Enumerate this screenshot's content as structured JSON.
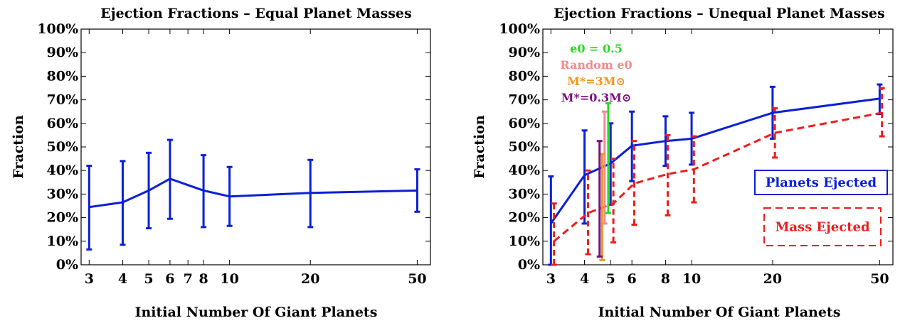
{
  "chart_data": [
    {
      "type": "line",
      "title": "Ejection Fractions – Equal Planet Masses",
      "xlabel": "Initial Number Of Giant Planets",
      "ylabel": "Fraction",
      "xscale": "log",
      "xlim": [
        2.8,
        56
      ],
      "ylim": [
        0,
        100
      ],
      "yticks": [
        "0%",
        "10%",
        "20%",
        "30%",
        "40%",
        "50%",
        "60%",
        "70%",
        "80%",
        "90%",
        "100%"
      ],
      "xticks": [
        "3",
        "4",
        "5",
        "6",
        "7",
        "8",
        "10",
        "20",
        "50"
      ],
      "grid": false,
      "series": [
        {
          "color": "#0a1fd6",
          "style": "solid",
          "x": [
            3,
            4,
            5,
            6,
            8,
            10,
            20,
            50
          ],
          "y": [
            24.5,
            26.5,
            31.5,
            36.5,
            31.5,
            29,
            30.5,
            31.5
          ],
          "err_low": [
            6.5,
            8.5,
            15.5,
            19.5,
            16,
            16.5,
            16,
            22.5
          ],
          "err_high": [
            42,
            44,
            47.5,
            53,
            46.5,
            41.5,
            44.5,
            40.5
          ]
        }
      ]
    },
    {
      "type": "line",
      "title": "Ejection Fractions – Unequal Planet Masses",
      "xlabel": "Initial Number Of Giant Planets",
      "ylabel": "Fraction",
      "xscale": "log",
      "xlim": [
        2.8,
        56
      ],
      "ylim": [
        0,
        100
      ],
      "yticks": [
        "0%",
        "10%",
        "20%",
        "30%",
        "40%",
        "50%",
        "60%",
        "70%",
        "80%",
        "90%",
        "100%"
      ],
      "xticks": [
        "3",
        "4",
        "5",
        "6",
        "8",
        "10",
        "20",
        "50"
      ],
      "grid": false,
      "legend_position": "right",
      "series": [
        {
          "name": "Planets Ejected",
          "color": "#0a1fd6",
          "style": "solid",
          "x": [
            3,
            4,
            5,
            6,
            8,
            10,
            20,
            50
          ],
          "y": [
            17.5,
            38,
            43,
            50.5,
            52.5,
            53.5,
            64.5,
            70.5
          ],
          "err_low": [
            0,
            17.5,
            25.5,
            35.5,
            42,
            42.5,
            53.5,
            64
          ],
          "err_high": [
            37.5,
            57,
            60,
            65,
            63,
            64.5,
            75.5,
            76.5
          ]
        },
        {
          "name": "Mass Ejected",
          "color": "#ee1c1c",
          "style": "dashed",
          "x": [
            3.08,
            4.12,
            5.12,
            6.12,
            8.15,
            10.2,
            20.4,
            51
          ],
          "y": [
            10,
            22,
            26,
            34.5,
            38.5,
            40.5,
            56,
            64.5
          ],
          "err_low": [
            0,
            4.5,
            9.5,
            17,
            21,
            26.5,
            45.5,
            54.5
          ],
          "err_high": [
            26,
            40,
            45,
            52.5,
            55,
            54.5,
            66.5,
            75
          ]
        }
      ],
      "extra_points": [
        {
          "label": "e0 = 0.5",
          "color": "#22dd22",
          "x": 4.9,
          "y": 45.5,
          "err_low": 22,
          "err_high": 68.5
        },
        {
          "label": "Random e0",
          "color": "#f08c8c",
          "x": 4.75,
          "y": 36.5,
          "err_low": 17.5,
          "err_high": 65
        },
        {
          "label": "M*=3M⊙",
          "color": "#f0961e",
          "x": 4.65,
          "y": 24,
          "err_low": 2,
          "err_high": 47
        },
        {
          "label": "M*=0.3M⊙",
          "color": "#7a0f7a",
          "x": 4.55,
          "y": 28,
          "err_low": 3.5,
          "err_high": 52.5
        }
      ]
    }
  ]
}
